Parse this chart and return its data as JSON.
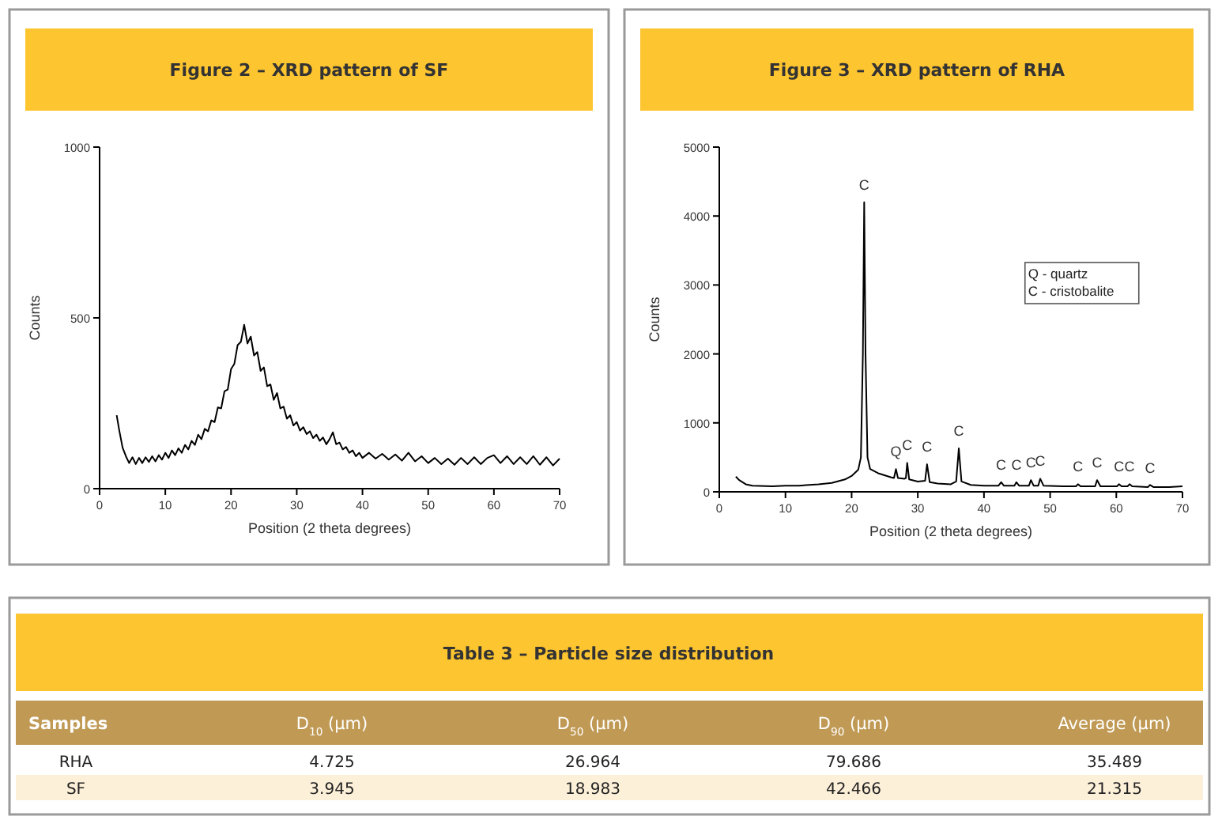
{
  "chart_data": [
    {
      "type": "line",
      "title": "Figure 2 – XRD pattern of SF",
      "xlabel": "Position (2 theta degrees)",
      "ylabel": "Counts",
      "color": "#000000",
      "x": [
        2.6,
        3,
        3.5,
        4,
        4.5,
        5,
        5.5,
        6,
        6.5,
        7,
        7.5,
        8,
        8.5,
        9,
        9.5,
        10,
        10.5,
        11,
        11.5,
        12,
        12.5,
        13,
        13.5,
        14,
        14.5,
        15,
        15.5,
        16,
        16.5,
        17,
        17.5,
        18,
        18.5,
        19,
        19.5,
        20,
        20.5,
        21,
        21.5,
        22,
        22.5,
        23,
        23.5,
        24,
        24.5,
        25,
        25.5,
        26,
        26.5,
        27,
        27.5,
        28,
        28.5,
        29,
        29.5,
        30,
        30.5,
        31,
        31.5,
        32,
        32.5,
        33,
        33.5,
        34,
        34.5,
        35,
        35.5,
        36,
        36.5,
        37,
        37.5,
        38,
        38.5,
        39,
        39.5,
        40,
        41,
        42,
        43,
        44,
        45,
        46,
        47,
        48,
        49,
        50,
        51,
        52,
        53,
        54,
        55,
        56,
        57,
        58,
        59,
        60,
        61,
        62,
        63,
        64,
        65,
        66,
        67,
        68,
        69,
        70
      ],
      "values": [
        215,
        170,
        120,
        95,
        75,
        92,
        72,
        90,
        75,
        92,
        78,
        95,
        80,
        98,
        85,
        105,
        90,
        112,
        98,
        118,
        105,
        128,
        115,
        140,
        128,
        158,
        145,
        175,
        168,
        200,
        195,
        238,
        235,
        285,
        290,
        350,
        365,
        420,
        430,
        480,
        425,
        445,
        390,
        400,
        345,
        355,
        300,
        305,
        260,
        280,
        235,
        240,
        205,
        215,
        185,
        195,
        170,
        180,
        160,
        168,
        148,
        158,
        140,
        150,
        130,
        145,
        165,
        130,
        135,
        115,
        122,
        105,
        112,
        95,
        105,
        90,
        105,
        88,
        102,
        85,
        100,
        82,
        105,
        80,
        95,
        75,
        90,
        72,
        88,
        70,
        90,
        72,
        92,
        72,
        90,
        98,
        75,
        95,
        72,
        92,
        72,
        95,
        70,
        92,
        68,
        88
      ],
      "xlim": [
        0,
        70
      ],
      "xticks": [
        0,
        10,
        20,
        30,
        40,
        50,
        60,
        70
      ],
      "ylim": [
        0,
        1000
      ],
      "yticks": [
        0,
        500,
        1000
      ]
    },
    {
      "type": "line",
      "title": "Figure 3 – XRD pattern of RHA",
      "xlabel": "Position (2 theta degrees)",
      "ylabel": "Counts",
      "color": "#000000",
      "x": [
        2.5,
        3,
        4,
        5,
        8,
        10,
        12,
        15,
        17,
        19,
        20,
        21,
        21.4,
        21.7,
        21.9,
        22.1,
        22.4,
        22.8,
        24,
        26,
        26.4,
        26.7,
        27,
        28,
        28.2,
        28.4,
        28.7,
        30,
        31.1,
        31.4,
        31.8,
        33,
        35,
        35.8,
        36.2,
        36.6,
        38,
        40,
        42.2,
        42.6,
        43,
        44.6,
        44.9,
        45.3,
        46.8,
        47.1,
        47.5,
        48.2,
        48.5,
        49,
        52,
        53.9,
        54.2,
        54.6,
        56.8,
        57.1,
        57.6,
        60.1,
        60.4,
        60.8,
        61.7,
        62,
        62.4,
        64.8,
        65.1,
        65.6,
        68,
        70
      ],
      "values": [
        220,
        170,
        110,
        90,
        80,
        90,
        90,
        110,
        130,
        180,
        230,
        320,
        500,
        2000,
        4200,
        2000,
        500,
        330,
        270,
        210,
        200,
        330,
        200,
        190,
        200,
        420,
        180,
        150,
        160,
        400,
        140,
        120,
        110,
        150,
        630,
        150,
        100,
        90,
        90,
        140,
        90,
        90,
        140,
        90,
        90,
        170,
        90,
        90,
        190,
        90,
        80,
        80,
        110,
        80,
        80,
        170,
        80,
        80,
        110,
        80,
        80,
        110,
        80,
        70,
        100,
        70,
        70,
        80
      ],
      "xlim": [
        0,
        70
      ],
      "xticks": [
        0,
        10,
        20,
        30,
        40,
        50,
        60,
        70
      ],
      "ylim": [
        0,
        5000
      ],
      "yticks": [
        0,
        1000,
        2000,
        3000,
        4000,
        5000
      ],
      "annotations": [
        "Q - quartz",
        "C - cristobalite",
        {
          "text": "C",
          "x": 21.9,
          "y": 4200
        },
        {
          "text": "Q",
          "x": 26.7,
          "y": 330
        },
        {
          "text": "C",
          "x": 28.4,
          "y": 420
        },
        {
          "text": "C",
          "x": 31.4,
          "y": 400
        },
        {
          "text": "C",
          "x": 36.2,
          "y": 630
        },
        {
          "text": "C",
          "x": 42.6,
          "y": 140
        },
        {
          "text": "C",
          "x": 44.9,
          "y": 140
        },
        {
          "text": "C",
          "x": 47.1,
          "y": 170
        },
        {
          "text": "C",
          "x": 48.5,
          "y": 190
        },
        {
          "text": "C",
          "x": 54.2,
          "y": 110
        },
        {
          "text": "C",
          "x": 57.1,
          "y": 170
        },
        {
          "text": "C",
          "x": 60.4,
          "y": 110
        },
        {
          "text": "C",
          "x": 62,
          "y": 110
        },
        {
          "text": "C",
          "x": 65.1,
          "y": 95
        }
      ]
    },
    {
      "type": "other",
      "title": "Table 3 – Particle size distribution",
      "ylabel": "Samples",
      "data_labels": true,
      "categories": [
        "D$_{10}$ (µm)",
        "D$_{50}$ (µm)",
        "D$_{90}$ (µm)",
        "Average (µm)"
      ],
      "series": [
        {
          "name": "RHA",
          "values": [
            4.725,
            26.964,
            79.686,
            35.489
          ]
        },
        {
          "name": "SF",
          "values": [
            3.945,
            18.983,
            42.466,
            21.315
          ]
        }
      ]
    }
  ]
}
